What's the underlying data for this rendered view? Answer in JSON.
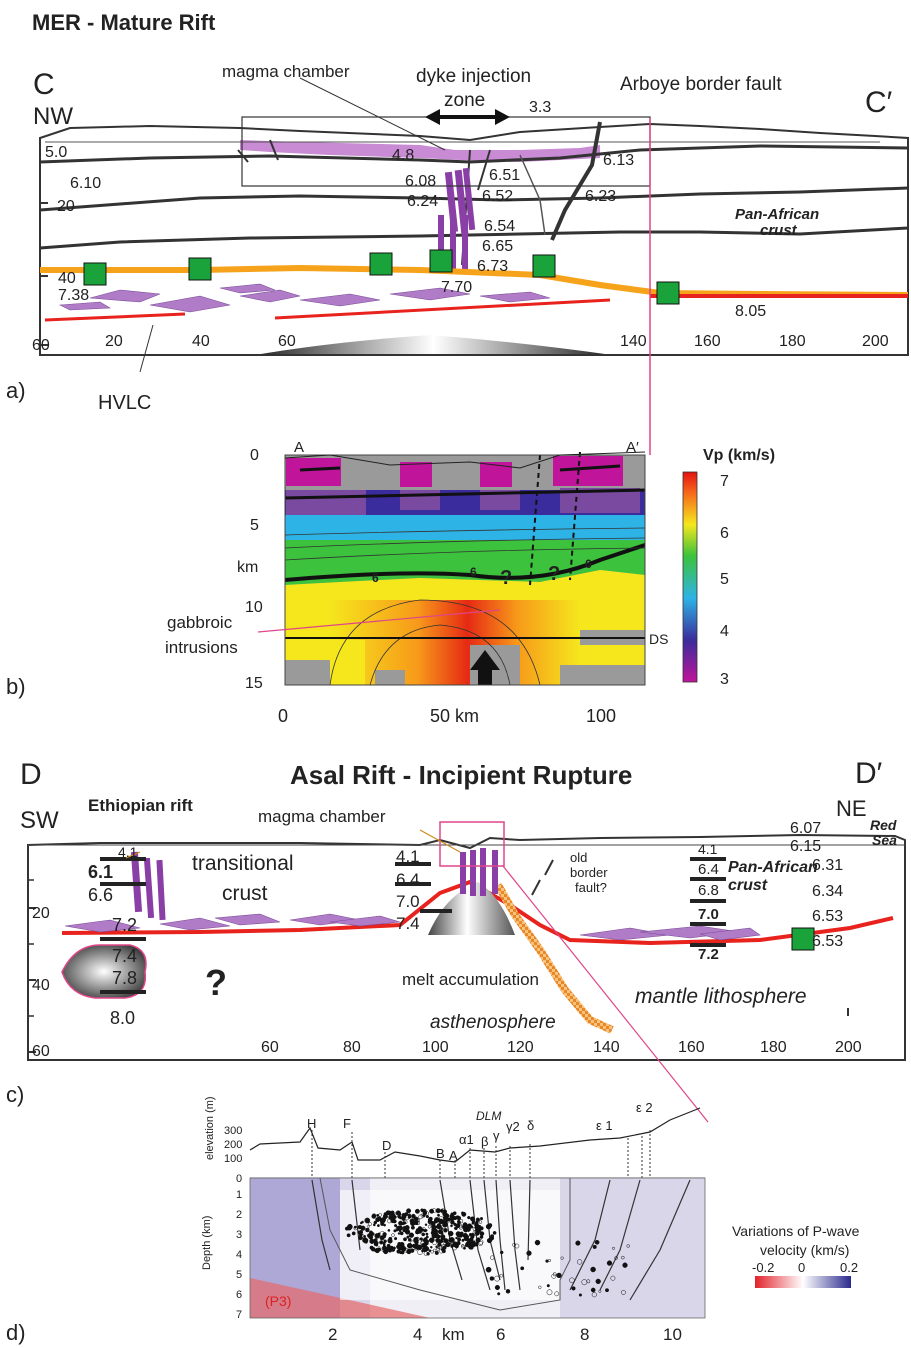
{
  "panel_top": {
    "title": "MER -  Mature Rift",
    "end_left": "C",
    "end_right": "C′",
    "dir_left": "NW",
    "lbl_magma": "magma chamber",
    "lbl_dyke_1": "dyke injection",
    "lbl_dyke_2": "zone",
    "lbl_fault": "Arboye border fault",
    "lbl_panafrican_1": "Pan-African",
    "lbl_panafrican_2": "crust",
    "lbl_hvlc": "HVLC",
    "depth_ticks": [
      "20",
      "40",
      "60"
    ],
    "x_ticks": [
      "20",
      "40",
      "60",
      "140",
      "160",
      "180",
      "200"
    ],
    "velocities": [
      "5.0",
      "6.10",
      "3.3",
      "4.8",
      "6.51",
      "6.13",
      "6.08",
      "6.24",
      "6.52",
      "6.23",
      "6.54",
      "6.65",
      "6.73",
      "7.38",
      "7.70",
      "8.05"
    ],
    "label": "a)"
  },
  "panel_b": {
    "end_left": "A",
    "end_right": "A′",
    "depth_ticks": [
      "0",
      "5",
      "10",
      "15"
    ],
    "depth_unit": "km",
    "x_ticks": [
      "0",
      "50 km",
      "100"
    ],
    "lbl_gabbro_1": "gabbroic",
    "lbl_gabbro_2": "intrusions",
    "lbl_ds": "DS",
    "contour_labels": [
      "6",
      "6",
      "6"
    ],
    "question_marks": [
      "?",
      "?"
    ],
    "colorbar_title": "Vp (km/s)",
    "colorbar_ticks": [
      "7",
      "6",
      "5",
      "4",
      "3"
    ],
    "label": "b)"
  },
  "panel_c": {
    "title": "Asal Rift -  Incipient Rupture",
    "end_left": "D",
    "end_right": "D′",
    "dir_left": "SW",
    "dir_right": "NE",
    "lbl_ethiopian": "Ethiopian rift",
    "lbl_magma": "magma chamber",
    "lbl_transitional_1": "transitional",
    "lbl_transitional_2": "crust",
    "lbl_redsea_1": "Red",
    "lbl_redsea_2": "Sea",
    "lbl_oldfault_1": "old",
    "lbl_oldfault_2": "border",
    "lbl_oldfault_3": "fault?",
    "lbl_panafrican_1": "Pan-African",
    "lbl_panafrican_2": "crust",
    "lbl_melt": "melt accumulation",
    "lbl_astheno": "asthenosphere",
    "lbl_mantle": "mantle lithosphere",
    "question": "?",
    "depth_ticks": [
      "20",
      "40",
      "60"
    ],
    "x_ticks": [
      "60",
      "80",
      "100",
      "120",
      "140",
      "160",
      "180",
      "200"
    ],
    "v_left": [
      "4.1",
      "6.1",
      "6.6",
      "7.2",
      "7.4",
      "7.8",
      "8.0"
    ],
    "v_mid": [
      "4.1",
      "6.4",
      "7.0",
      "7.4"
    ],
    "v_right_col": [
      "4.1",
      "6.4",
      "6.8",
      "7.0",
      "7.2"
    ],
    "v_far_right": [
      "6.07",
      "6.15",
      "6.31",
      "6.34",
      "6.53",
      "6.53"
    ],
    "label": "c)"
  },
  "panel_d": {
    "ylabel_elev": "elevation (m)",
    "ylabel_depth": "Depth (km)",
    "elev_ticks": [
      "300",
      "200",
      "100",
      "0"
    ],
    "depth_ticks": [
      "1",
      "2",
      "3",
      "4",
      "5",
      "6",
      "7"
    ],
    "x_ticks": [
      "2",
      "4",
      "km",
      "6",
      "8",
      "10"
    ],
    "fault_labels": [
      "H",
      "F",
      "D",
      "B",
      "A",
      "α1",
      "β",
      "γ",
      "γ2",
      "δ",
      "ε 1",
      "ε 2"
    ],
    "dlm": "DLM",
    "p3": "(P3)",
    "legend_title_1": "Variations of P-wave",
    "legend_title_2": "velocity (km/s)",
    "legend_ticks": [
      "-0.2",
      "0",
      "0.2"
    ],
    "label": "d)"
  },
  "colors": {
    "magma": "#a35fb5",
    "moho_orange": "#f7a21b",
    "red_line": "#e8221c",
    "station_green": "#1aa33a",
    "pink_line": "#e0458a"
  }
}
